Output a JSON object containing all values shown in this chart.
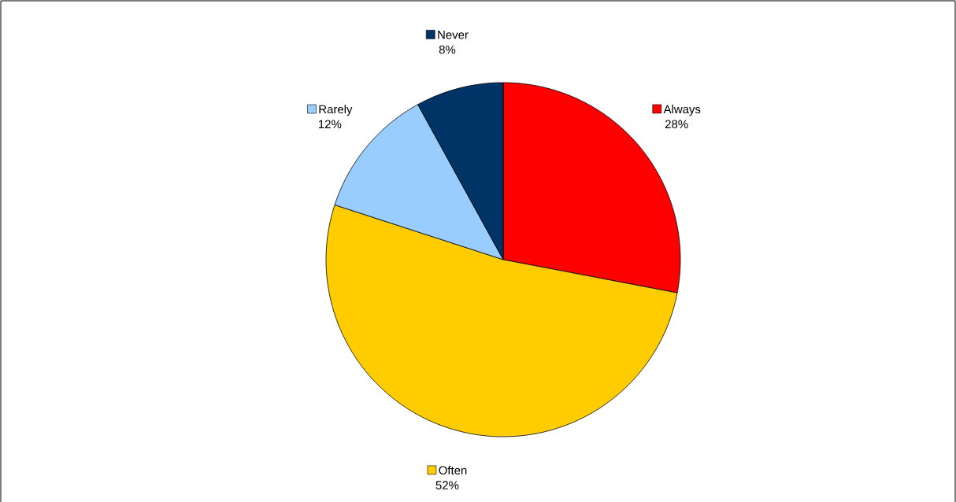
{
  "chart_data": {
    "type": "pie",
    "categories": [
      "Always",
      "Often",
      "Rarely",
      "Never"
    ],
    "values": [
      28,
      52,
      12,
      8
    ],
    "colors": [
      "#ff0000",
      "#ffcc00",
      "#99ccff",
      "#003366"
    ],
    "value_labels": [
      "28%",
      "52%",
      "12%",
      "8%"
    ],
    "legend": "center"
  }
}
